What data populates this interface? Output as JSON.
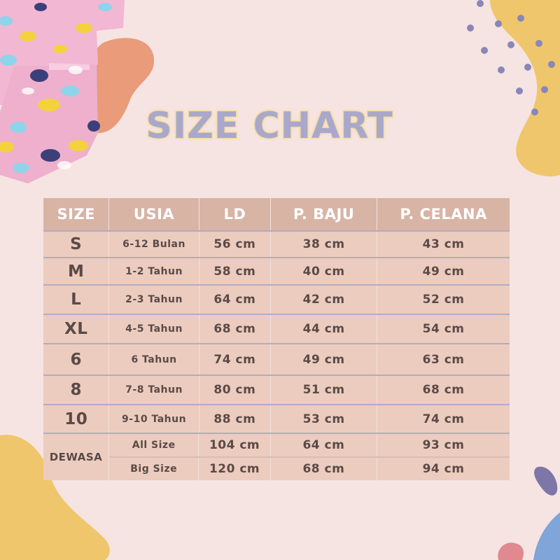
{
  "title": "SIZE CHART",
  "colors": {
    "background": "#f6e4e2",
    "table_body": "#ecccbe",
    "table_header": "#d8b4a5",
    "title_fill": "#a9a8cc",
    "title_outline": "#f2d389",
    "dots": "#8a86b8",
    "blob_yellow": "#f0c66d",
    "blob_orange": "#e99b7a"
  },
  "table": {
    "headers": [
      "SIZE",
      "USIA",
      "LD",
      "P. BAJU",
      "P. CELANA"
    ],
    "rows": [
      {
        "size": "S",
        "usia": "6-12 Bulan",
        "ld": "56 cm",
        "baju": "38 cm",
        "celana": "43 cm"
      },
      {
        "size": "M",
        "usia": "1-2 Tahun",
        "ld": "58 cm",
        "baju": "40 cm",
        "celana": "49 cm"
      },
      {
        "size": "L",
        "usia": "2-3 Tahun",
        "ld": "64 cm",
        "baju": "42 cm",
        "celana": "52 cm"
      },
      {
        "size": "XL",
        "usia": "4-5 Tahun",
        "ld": "68 cm",
        "baju": "44 cm",
        "celana": "54 cm"
      },
      {
        "size": "6",
        "usia": "6 Tahun",
        "ld": "74 cm",
        "baju": "49 cm",
        "celana": "63 cm"
      },
      {
        "size": "8",
        "usia": "7-8 Tahun",
        "ld": "80 cm",
        "baju": "51 cm",
        "celana": "68 cm"
      },
      {
        "size": "10",
        "usia": "9-10 Tahun",
        "ld": "88 cm",
        "baju": "53 cm",
        "celana": "74 cm"
      }
    ],
    "dewasa": {
      "size": "DEWASA",
      "rows": [
        {
          "usia": "All Size",
          "ld": "104 cm",
          "baju": "64 cm",
          "celana": "93 cm"
        },
        {
          "usia": "Big Size",
          "ld": "120 cm",
          "baju": "68 cm",
          "celana": "94 cm"
        }
      ]
    }
  }
}
